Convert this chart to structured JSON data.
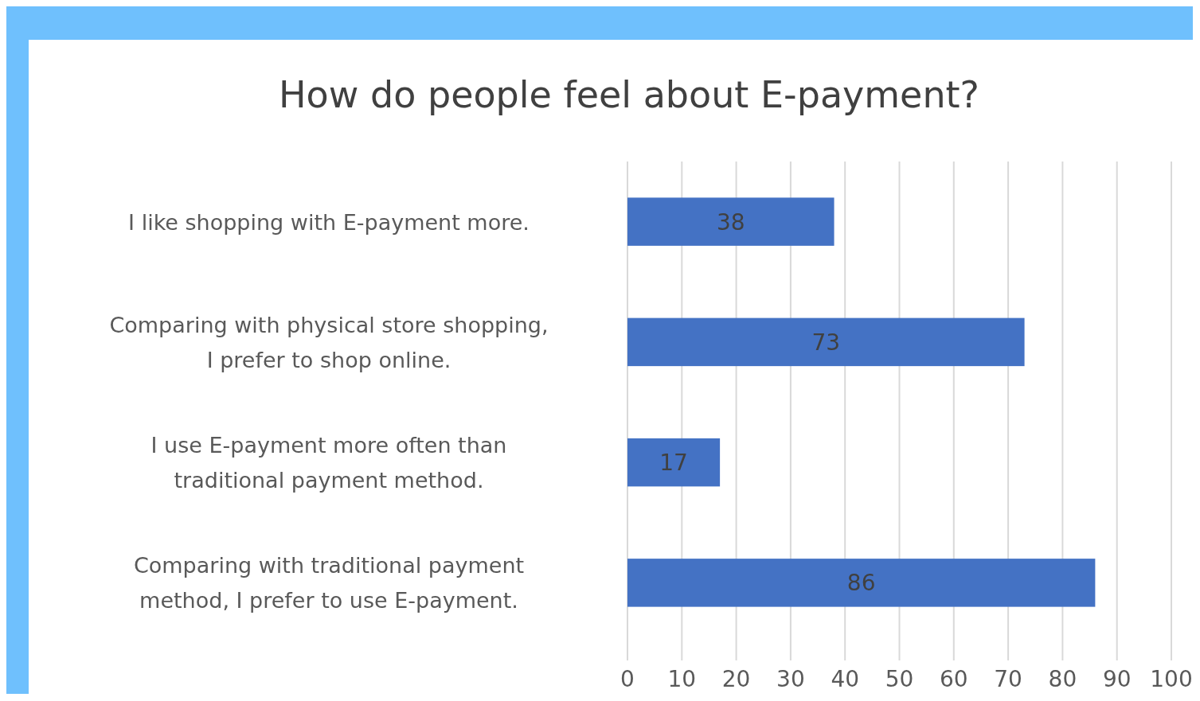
{
  "chart_data": {
    "type": "bar",
    "orientation": "horizontal",
    "title": "How do people feel about E-payment?",
    "categories": [
      "I like shopping with E-payment more.",
      "Comparing with physical store shopping, I prefer to shop online.",
      "I use E-payment more often than traditional payment method.",
      "Comparing with traditional payment method, I prefer to use E-payment."
    ],
    "values": [
      38,
      73,
      17,
      86
    ],
    "color": "#4472c4",
    "xlim": [
      0,
      100
    ],
    "xticks": [
      0,
      10,
      20,
      30,
      40,
      50,
      60,
      70,
      80,
      90,
      100
    ],
    "grid": "x",
    "data_labels": true
  }
}
